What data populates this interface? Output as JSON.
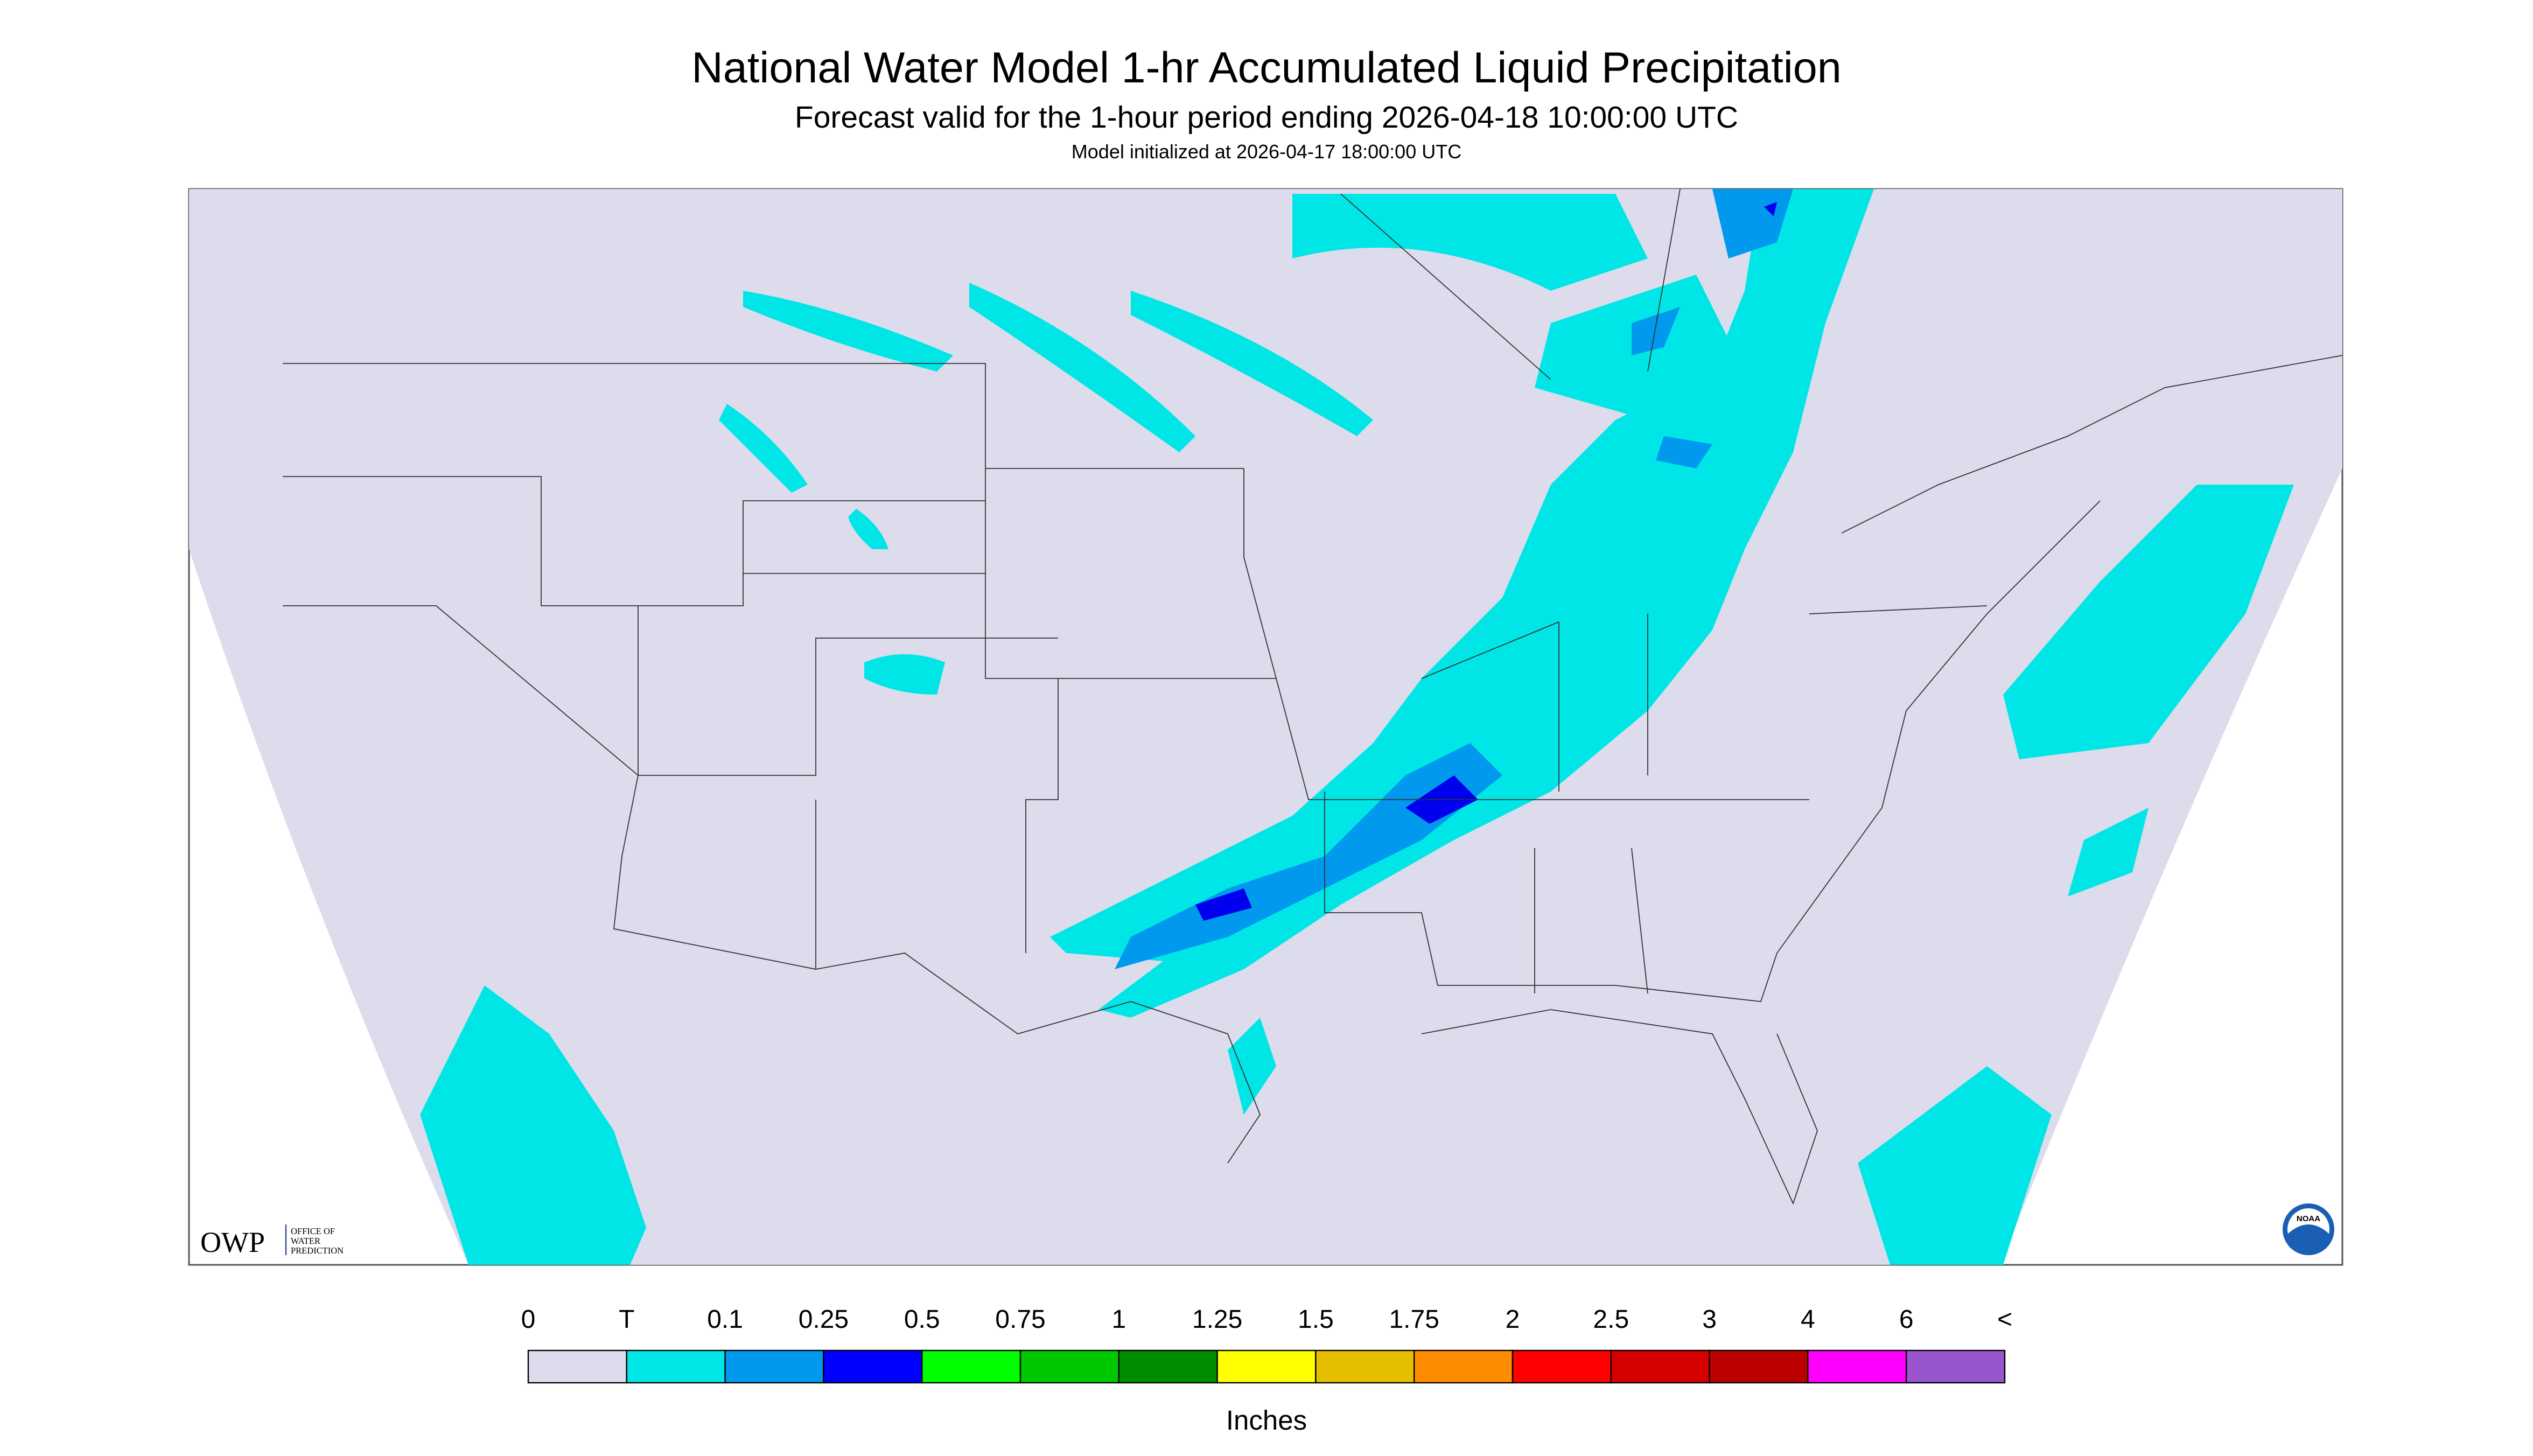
{
  "header": {
    "title": "National Water Model 1-hr Accumulated Liquid Precipitation",
    "subtitle": "Forecast valid for the 1-hour period ending 2026-04-18 10:00:00 UTC",
    "note": "Model initialized at 2026-04-17 18:00:00 UTC"
  },
  "logos": {
    "owp": "OWP",
    "owp_text": [
      "OFFICE OF",
      "WATER",
      "PREDICTION"
    ],
    "noaa": "NOAA"
  },
  "legend": {
    "labels": [
      "0",
      "T",
      "0.1",
      "0.25",
      "0.5",
      "0.75",
      "1",
      "1.25",
      "1.5",
      "1.75",
      "2",
      "2.5",
      "3",
      "4",
      "6",
      "<"
    ],
    "colors": [
      "#dcdcec",
      "#00e6e6",
      "#0099ee",
      "#0000ff",
      "#00ff00",
      "#00c800",
      "#008c00",
      "#ffff00",
      "#e6be00",
      "#ff8c00",
      "#ff0000",
      "#d70000",
      "#bb0000",
      "#ff00ff",
      "#9955cc"
    ],
    "unit": "Inches"
  }
}
